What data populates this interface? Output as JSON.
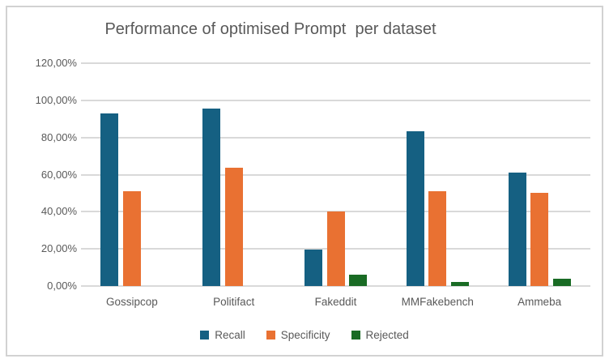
{
  "chart_data": {
    "type": "bar",
    "title": "Performance of optimised Prompt  per dataset",
    "categories": [
      "Gossipcop",
      "Politifact",
      "Fakeddit",
      "MMFakebench",
      "Ammeba"
    ],
    "series": [
      {
        "name": "Recall",
        "color": "#156082",
        "values": [
          93,
          95.5,
          19.5,
          83.5,
          61
        ]
      },
      {
        "name": "Specificity",
        "color": "#E97132",
        "values": [
          51,
          63.5,
          40,
          51,
          50
        ]
      },
      {
        "name": "Rejected",
        "color": "#196B24",
        "values": [
          0,
          0,
          6,
          2,
          4
        ]
      }
    ],
    "y_axis": {
      "min": 0,
      "max": 120,
      "step": 20,
      "tick_labels": [
        "0,00%",
        "20,00%",
        "40,00%",
        "60,00%",
        "80,00%",
        "100,00%",
        "120,00%"
      ],
      "format": "percent-comma"
    },
    "xlabel": "",
    "ylabel": "",
    "ylim": [
      0,
      120
    ],
    "grid": true,
    "legend_position": "bottom",
    "value_unit": "%"
  },
  "colors": {
    "background": "#FFFFFF",
    "frame_border": "#D2D2D2",
    "grid": "#D9D9D9",
    "axis_text": "#595959",
    "title_text": "#595959"
  }
}
